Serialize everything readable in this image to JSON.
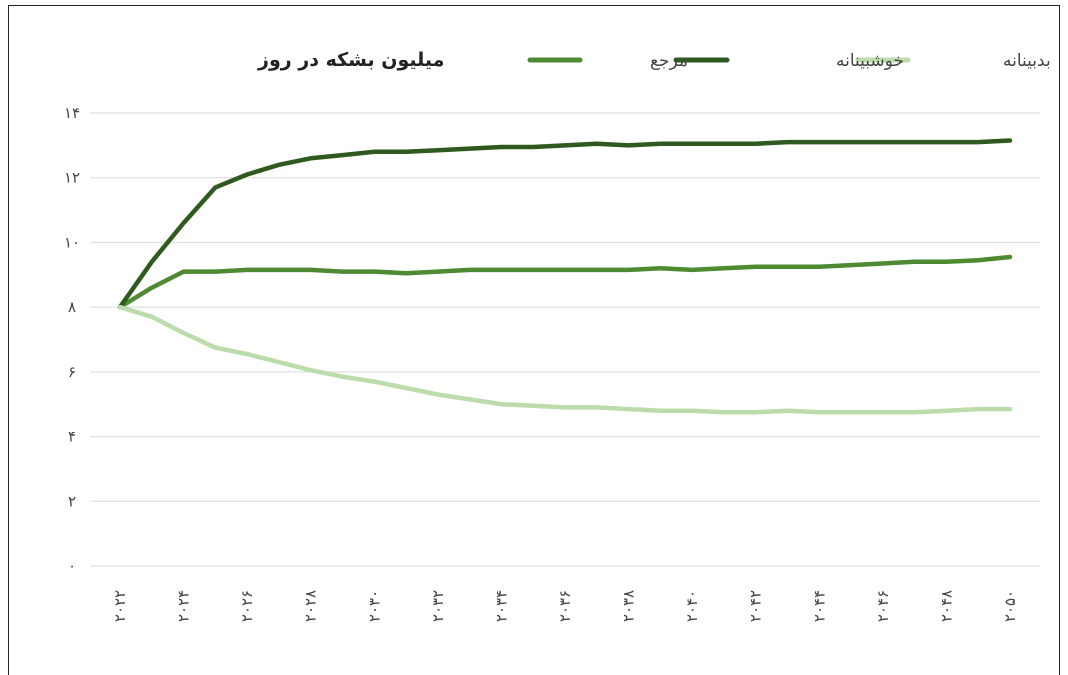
{
  "chart_data": {
    "type": "line",
    "title": "میلیون بشکه در روز",
    "ylim": [
      0,
      14
    ],
    "y_ticks": [
      "۰",
      "۲",
      "۴",
      "۶",
      "۸",
      "۱۰",
      "۱۲",
      "۱۴"
    ],
    "y_tick_values": [
      0,
      2,
      4,
      6,
      8,
      10,
      12,
      14
    ],
    "x": [
      2022,
      2023,
      2024,
      2025,
      2026,
      2027,
      2028,
      2029,
      2030,
      2031,
      2032,
      2033,
      2034,
      2035,
      2036,
      2037,
      2038,
      2039,
      2040,
      2041,
      2042,
      2043,
      2044,
      2045,
      2046,
      2047,
      2048,
      2049,
      2050
    ],
    "x_ticks": [
      "۲۰۲۲",
      "۲۰۲۴",
      "۲۰۲۶",
      "۲۰۲۸",
      "۲۰۳۰",
      "۲۰۳۲",
      "۲۰۳۴",
      "۲۰۳۶",
      "۲۰۳۸",
      "۲۰۴۰",
      "۲۰۴۲",
      "۲۰۴۴",
      "۲۰۴۶",
      "۲۰۴۸",
      "۲۰۵۰"
    ],
    "x_tick_values": [
      2022,
      2024,
      2026,
      2028,
      2030,
      2032,
      2034,
      2036,
      2038,
      2040,
      2042,
      2044,
      2046,
      2048,
      2050
    ],
    "grid": true,
    "legend_position": "top",
    "series": [
      {
        "name": "مرجع",
        "color": "#4e8a32",
        "values": [
          8.0,
          8.6,
          9.1,
          9.1,
          9.15,
          9.15,
          9.15,
          9.1,
          9.1,
          9.05,
          9.1,
          9.15,
          9.15,
          9.15,
          9.15,
          9.15,
          9.15,
          9.2,
          9.15,
          9.2,
          9.25,
          9.25,
          9.25,
          9.3,
          9.35,
          9.4,
          9.4,
          9.45,
          9.55
        ]
      },
      {
        "name": "خوشبینانه",
        "color": "#2f5a1f",
        "values": [
          8.0,
          9.4,
          10.6,
          11.7,
          12.1,
          12.4,
          12.6,
          12.7,
          12.8,
          12.8,
          12.85,
          12.9,
          12.95,
          12.95,
          13.0,
          13.05,
          13.0,
          13.05,
          13.05,
          13.05,
          13.05,
          13.1,
          13.1,
          13.1,
          13.1,
          13.1,
          13.1,
          13.1,
          13.15
        ]
      },
      {
        "name": "بدبینانه",
        "color": "#bcdcab",
        "values": [
          8.0,
          7.7,
          7.2,
          6.75,
          6.55,
          6.3,
          6.05,
          5.85,
          5.7,
          5.5,
          5.3,
          5.15,
          5.0,
          4.95,
          4.9,
          4.9,
          4.85,
          4.8,
          4.8,
          4.75,
          4.75,
          4.8,
          4.75,
          4.75,
          4.75,
          4.75,
          4.8,
          4.85,
          4.85
        ]
      }
    ],
    "legend_order": [
      "بدبینانه",
      "خوشبینانه",
      "مرجع"
    ],
    "grid_color": "#d9d9d9"
  }
}
